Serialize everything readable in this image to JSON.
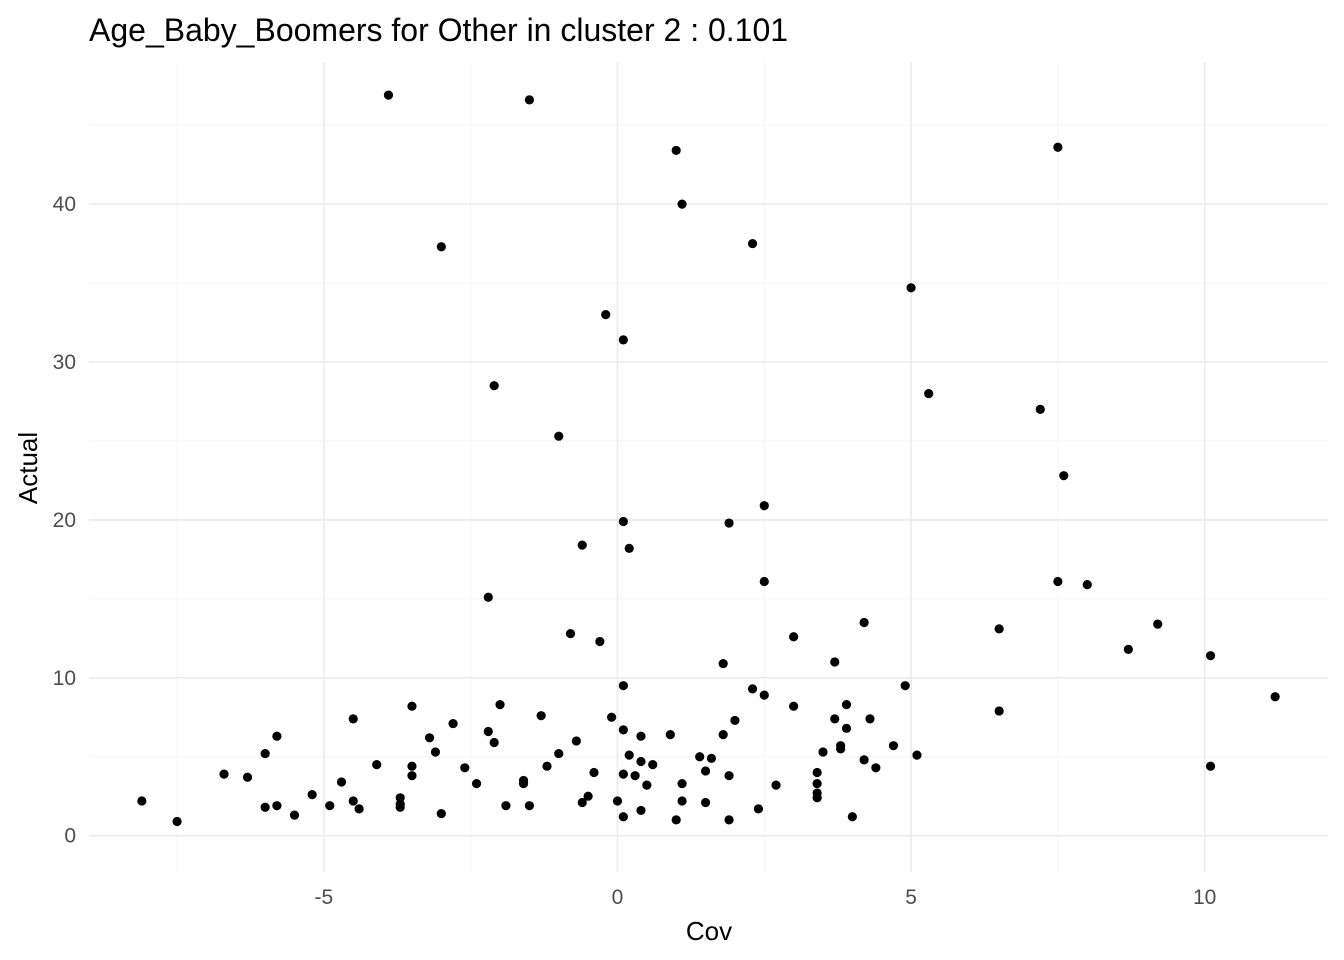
{
  "chart_data": {
    "type": "scatter",
    "title": "Age_Baby_Boomers for Other in cluster 2 : 0.101",
    "xlabel": "Cov",
    "ylabel": "Actual",
    "xlim": [
      -9.0,
      12.1
    ],
    "ylim": [
      -2.3,
      49.0
    ],
    "x_ticks": [
      -5,
      0,
      5,
      10
    ],
    "x_tick_labels": [
      "-5",
      "0",
      "5",
      "10"
    ],
    "y_ticks": [
      0,
      10,
      20,
      30,
      40
    ],
    "y_tick_labels": [
      "0",
      "10",
      "20",
      "30",
      "40"
    ],
    "grid": true,
    "legend": "none",
    "point_color": "#000000",
    "points": [
      [
        -3.9,
        46.9
      ],
      [
        -1.5,
        46.6
      ],
      [
        1.0,
        43.4
      ],
      [
        7.5,
        43.6
      ],
      [
        1.1,
        40.0
      ],
      [
        -3.0,
        37.3
      ],
      [
        2.3,
        37.5
      ],
      [
        5.0,
        34.7
      ],
      [
        -0.2,
        33.0
      ],
      [
        0.1,
        31.4
      ],
      [
        -2.1,
        28.5
      ],
      [
        5.3,
        28.0
      ],
      [
        7.2,
        27.0
      ],
      [
        -1.0,
        25.3
      ],
      [
        7.6,
        22.8
      ],
      [
        2.5,
        20.9
      ],
      [
        0.1,
        19.9
      ],
      [
        1.9,
        19.8
      ],
      [
        -0.6,
        18.4
      ],
      [
        0.2,
        18.2
      ],
      [
        2.5,
        16.1
      ],
      [
        7.5,
        16.1
      ],
      [
        8.0,
        15.9
      ],
      [
        -2.2,
        15.1
      ],
      [
        9.2,
        13.4
      ],
      [
        4.2,
        13.5
      ],
      [
        6.5,
        13.1
      ],
      [
        -0.8,
        12.8
      ],
      [
        3.0,
        12.6
      ],
      [
        -0.3,
        12.3
      ],
      [
        8.7,
        11.8
      ],
      [
        10.1,
        11.4
      ],
      [
        1.8,
        10.9
      ],
      [
        3.7,
        11.0
      ],
      [
        0.1,
        9.5
      ],
      [
        4.9,
        9.5
      ],
      [
        2.3,
        9.3
      ],
      [
        2.5,
        8.9
      ],
      [
        11.2,
        8.8
      ],
      [
        -3.5,
        8.2
      ],
      [
        -2.0,
        8.3
      ],
      [
        3.0,
        8.2
      ],
      [
        3.9,
        8.3
      ],
      [
        6.5,
        7.9
      ],
      [
        -1.3,
        7.6
      ],
      [
        -0.1,
        7.5
      ],
      [
        -4.5,
        7.4
      ],
      [
        2.0,
        7.3
      ],
      [
        3.7,
        7.4
      ],
      [
        4.3,
        7.4
      ],
      [
        -2.8,
        7.1
      ],
      [
        0.1,
        6.7
      ],
      [
        -2.2,
        6.6
      ],
      [
        0.9,
        6.4
      ],
      [
        1.8,
        6.4
      ],
      [
        3.9,
        6.8
      ],
      [
        -5.8,
        6.3
      ],
      [
        -3.2,
        6.2
      ],
      [
        -2.1,
        5.9
      ],
      [
        -0.7,
        6.0
      ],
      [
        0.4,
        6.3
      ],
      [
        3.8,
        5.7
      ],
      [
        4.7,
        5.7
      ],
      [
        -6.0,
        5.2
      ],
      [
        -3.1,
        5.3
      ],
      [
        -1.0,
        5.2
      ],
      [
        0.2,
        5.1
      ],
      [
        1.4,
        5.0
      ],
      [
        1.6,
        4.9
      ],
      [
        3.5,
        5.3
      ],
      [
        3.8,
        5.5
      ],
      [
        5.1,
        5.1
      ],
      [
        -4.1,
        4.5
      ],
      [
        -3.5,
        4.4
      ],
      [
        -1.2,
        4.4
      ],
      [
        0.4,
        4.7
      ],
      [
        0.6,
        4.5
      ],
      [
        4.2,
        4.8
      ],
      [
        4.4,
        4.3
      ],
      [
        10.1,
        4.4
      ],
      [
        -6.7,
        3.9
      ],
      [
        -6.3,
        3.7
      ],
      [
        -3.5,
        3.8
      ],
      [
        -2.6,
        4.3
      ],
      [
        -0.4,
        4.0
      ],
      [
        0.1,
        3.9
      ],
      [
        0.3,
        3.8
      ],
      [
        1.5,
        4.1
      ],
      [
        1.9,
        3.8
      ],
      [
        3.4,
        4.0
      ],
      [
        -4.7,
        3.4
      ],
      [
        -2.4,
        3.3
      ],
      [
        -1.6,
        3.5
      ],
      [
        -1.6,
        3.3
      ],
      [
        0.5,
        3.2
      ],
      [
        1.1,
        3.3
      ],
      [
        2.7,
        3.2
      ],
      [
        3.4,
        3.3
      ],
      [
        -5.2,
        2.6
      ],
      [
        -3.7,
        2.4
      ],
      [
        -0.5,
        2.5
      ],
      [
        3.4,
        2.7
      ],
      [
        3.4,
        2.4
      ],
      [
        -4.5,
        2.2
      ],
      [
        -8.1,
        2.2
      ],
      [
        -0.6,
        2.1
      ],
      [
        0.0,
        2.2
      ],
      [
        1.1,
        2.2
      ],
      [
        1.5,
        2.1
      ],
      [
        -6.0,
        1.8
      ],
      [
        -5.8,
        1.9
      ],
      [
        -4.9,
        1.9
      ],
      [
        -4.4,
        1.7
      ],
      [
        -3.7,
        1.8
      ],
      [
        -3.7,
        2.0
      ],
      [
        -1.9,
        1.9
      ],
      [
        -1.5,
        1.9
      ],
      [
        2.4,
        1.7
      ],
      [
        -5.5,
        1.3
      ],
      [
        -3.0,
        1.4
      ],
      [
        0.1,
        1.2
      ],
      [
        0.4,
        1.6
      ],
      [
        1.0,
        1.0
      ],
      [
        1.9,
        1.0
      ],
      [
        4.0,
        1.2
      ],
      [
        -7.5,
        0.9
      ]
    ]
  }
}
